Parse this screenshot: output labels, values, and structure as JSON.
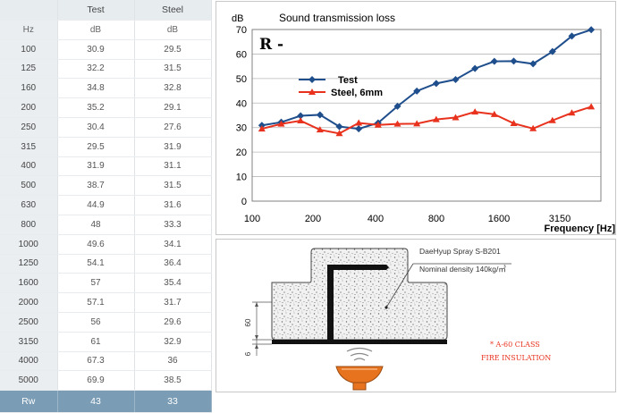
{
  "table": {
    "headers": [
      "",
      "Test",
      "Steel"
    ],
    "unit_row": [
      "Hz",
      "dB",
      "dB"
    ],
    "rows": [
      [
        "100",
        "30.9",
        "29.5"
      ],
      [
        "125",
        "32.2",
        "31.5"
      ],
      [
        "160",
        "34.8",
        "32.8"
      ],
      [
        "200",
        "35.2",
        "29.1"
      ],
      [
        "250",
        "30.4",
        "27.6"
      ],
      [
        "315",
        "29.5",
        "31.9"
      ],
      [
        "400",
        "31.9",
        "31.1"
      ],
      [
        "500",
        "38.7",
        "31.5"
      ],
      [
        "630",
        "44.9",
        "31.6"
      ],
      [
        "800",
        "48",
        "33.3"
      ],
      [
        "1000",
        "49.6",
        "34.1"
      ],
      [
        "1250",
        "54.1",
        "36.4"
      ],
      [
        "1600",
        "57",
        "35.4"
      ],
      [
        "2000",
        "57.1",
        "31.7"
      ],
      [
        "2500",
        "56",
        "29.6"
      ],
      [
        "3150",
        "61",
        "32.9"
      ],
      [
        "4000",
        "67.3",
        "36"
      ],
      [
        "5000",
        "69.9",
        "38.5"
      ]
    ],
    "footer": [
      "Rw",
      "43",
      "33"
    ]
  },
  "chart_data": {
    "type": "line",
    "title": "Sound transmission loss",
    "ylabel": "dB",
    "xlabel": "Frequency [Hz]",
    "annotation": "R -",
    "ylim": [
      0,
      70
    ],
    "yticks": [
      "0",
      "10",
      "20",
      "30",
      "40",
      "50",
      "60",
      "70"
    ],
    "x": [
      "100",
      "125",
      "160",
      "200",
      "250",
      "315",
      "400",
      "500",
      "630",
      "800",
      "1000",
      "1250",
      "1600",
      "2000",
      "2500",
      "3150",
      "4000",
      "5000"
    ],
    "xtick_labels": [
      "100",
      "200",
      "400",
      "800",
      "1600",
      "3150"
    ],
    "grid": true,
    "legend_position": "top-left",
    "series": [
      {
        "name": "Test",
        "color": "#1f4e8c",
        "marker": "diamond",
        "values": [
          30.9,
          32.2,
          34.8,
          35.2,
          30.4,
          29.5,
          31.9,
          38.7,
          44.9,
          48,
          49.6,
          54.1,
          57,
          57.1,
          56,
          61,
          67.3,
          69.9
        ]
      },
      {
        "name": "Steel, 6mm",
        "color": "#e8321e",
        "marker": "triangle",
        "values": [
          29.5,
          31.5,
          32.8,
          29.1,
          27.6,
          31.9,
          31.1,
          31.5,
          31.6,
          33.3,
          34.1,
          36.4,
          35.4,
          31.7,
          29.6,
          32.9,
          36,
          38.5
        ]
      }
    ]
  },
  "diagram": {
    "product_label": "DaeHyup Spray S-B201",
    "density_label": "Nominal density 140kg/㎥",
    "dim_top": "60",
    "dim_bottom": "6",
    "class_label": "* A-60 CLASS",
    "class_label2": "FIRE INSULATION",
    "fire_color": "#e8731e",
    "class_color": "#e8321e"
  }
}
